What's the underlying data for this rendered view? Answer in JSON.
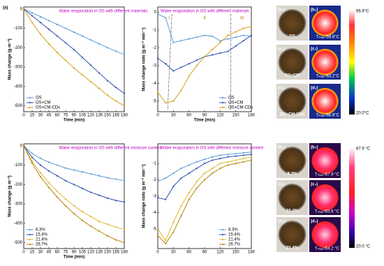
{
  "chart_data": [
    {
      "type": "line",
      "panel_label": "(a)",
      "annotation": "Water evaporation in OS with different materials",
      "x_label": "Time (min)",
      "y_label": "Mass change (g m⁻²)",
      "legend": "bottom-left",
      "x": [
        0,
        15,
        30,
        45,
        60,
        75,
        90,
        105,
        120,
        135,
        150,
        165,
        180
      ],
      "xlim": [
        0,
        180
      ],
      "xticks": [
        0,
        15,
        30,
        45,
        60,
        75,
        90,
        105,
        120,
        135,
        150,
        165,
        180
      ],
      "ylim": [
        -530,
        10
      ],
      "yticks": [
        0,
        -100,
        -200,
        -300,
        -400,
        -500
      ],
      "series": [
        {
          "name": "OS",
          "color": "#5b9bd5",
          "values": [
            0,
            -20,
            -40,
            -60,
            -80,
            -100,
            -120,
            -140,
            -160,
            -180,
            -200,
            -218,
            -235
          ]
        },
        {
          "name": "OS+CM",
          "color": "#2e4fb0",
          "values": [
            0,
            -35,
            -70,
            -105,
            -140,
            -175,
            -210,
            -250,
            -290,
            -330,
            -370,
            -405,
            -435
          ]
        },
        {
          "name": "OS+CM-CDs",
          "color": "#d4a418",
          "values": [
            0,
            -70,
            -130,
            -180,
            -225,
            -265,
            -305,
            -340,
            -375,
            -410,
            -445,
            -475,
            -500
          ]
        }
      ]
    },
    {
      "type": "line",
      "annotation": "Water evaporation in OS with different materials",
      "regions": [
        "I",
        "II",
        "III"
      ],
      "x_label": "Time (min)",
      "y_label": "Mass change ratio (g m⁻² min⁻¹)",
      "legend": "bottom-right",
      "x": [
        0,
        15,
        30,
        45,
        60,
        75,
        90,
        105,
        120,
        135,
        150,
        165,
        180
      ],
      "xlim": [
        0,
        180
      ],
      "xticks": [
        0,
        30,
        60,
        90,
        120,
        150,
        180
      ],
      "ylim": [
        -5.6,
        0.3
      ],
      "yticks": [
        0,
        -1,
        -2,
        -3,
        -4,
        -5
      ],
      "series": [
        {
          "name": "OS",
          "color": "#5b9bd5",
          "values": [
            -0.1,
            -0.3,
            -1.7,
            -1.6,
            -1.5,
            -1.4,
            -1.3,
            -1.35,
            -1.6,
            -1.5,
            -1.4,
            -1.3,
            -1.35
          ]
        },
        {
          "name": "OS+CM",
          "color": "#2e4fb0",
          "values": [
            -2.6,
            -2.9,
            -3.3,
            -3.1,
            -2.9,
            -2.7,
            -2.5,
            -2.4,
            -2.3,
            -2.2,
            -1.9,
            -1.6,
            -1.3
          ]
        },
        {
          "name": "OS+CM-CDs",
          "color": "#d4a418",
          "values": [
            -4.5,
            -5.1,
            -5.0,
            -4.4,
            -3.6,
            -3.0,
            -2.5,
            -2.1,
            -1.7,
            -1.3,
            -1.1,
            -0.9,
            -0.8
          ]
        }
      ]
    },
    {
      "type": "line",
      "annotation": "Water evaporation in OS with different moisture content",
      "x_label": "Time (min)",
      "y_label": "Mass change (g m⁻²)",
      "legend": "bottom-left",
      "x": [
        0,
        15,
        30,
        45,
        60,
        75,
        90,
        105,
        120,
        135,
        150,
        165,
        180
      ],
      "xlim": [
        0,
        180
      ],
      "xticks": [
        0,
        15,
        30,
        45,
        60,
        75,
        90,
        105,
        120,
        135,
        150,
        165,
        180
      ],
      "ylim": [
        -530,
        10
      ],
      "yticks": [
        0,
        -100,
        -200,
        -300,
        -400,
        -500
      ],
      "series": [
        {
          "name": "8.3%",
          "color": "#5b9bd5",
          "values": [
            0,
            -40,
            -65,
            -85,
            -100,
            -115,
            -125,
            -135,
            -145,
            -155,
            -165,
            -172,
            -180
          ]
        },
        {
          "name": "15.4%",
          "color": "#2e4fb0",
          "values": [
            0,
            -60,
            -100,
            -130,
            -155,
            -180,
            -200,
            -220,
            -240,
            -255,
            -270,
            -282,
            -290
          ]
        },
        {
          "name": "21.4%",
          "color": "#e0b830",
          "values": [
            0,
            -80,
            -140,
            -190,
            -235,
            -275,
            -310,
            -340,
            -365,
            -390,
            -405,
            -420,
            -430
          ]
        },
        {
          "name": "26.7%",
          "color": "#b8860b",
          "values": [
            0,
            -90,
            -160,
            -215,
            -265,
            -310,
            -350,
            -385,
            -415,
            -440,
            -465,
            -485,
            -500
          ]
        }
      ]
    },
    {
      "type": "line",
      "annotation": "Water evaporation in OS with different moisture content",
      "y_label": "Mass change ratio (g m⁻² min⁻¹)",
      "legend": "bottom-right",
      "x": [
        0,
        15,
        30,
        45,
        60,
        75,
        90,
        105,
        120,
        135,
        150,
        165,
        180
      ],
      "xlim": [
        0,
        180
      ],
      "xticks": [
        0,
        30,
        60,
        90,
        120,
        150,
        180
      ],
      "ylim": [
        -6.2,
        0.2
      ],
      "yticks": [
        -1,
        -2,
        -3,
        -4,
        -5
      ],
      "series": [
        {
          "name": "8.3%",
          "color": "#5b9bd5",
          "values": [
            -2.1,
            -1.9,
            -1.6,
            -1.3,
            -1.1,
            -0.9,
            -0.75,
            -0.6,
            -0.5,
            -0.45,
            -0.4,
            -0.35,
            -0.3
          ]
        },
        {
          "name": "15.4%",
          "color": "#2e4fb0",
          "values": [
            -3.1,
            -3.2,
            -2.4,
            -1.9,
            -1.6,
            -1.3,
            -1.0,
            -0.8,
            -0.7,
            -0.6,
            -0.55,
            -0.5,
            -0.45
          ]
        },
        {
          "name": "21.4%",
          "color": "#e0b830",
          "values": [
            -5.0,
            -5.7,
            -4.6,
            -3.6,
            -2.8,
            -2.1,
            -1.6,
            -1.3,
            -1.0,
            -0.9,
            -0.8,
            -0.7,
            -0.6
          ]
        },
        {
          "name": "26.7%",
          "color": "#b8860b",
          "values": [
            -5.4,
            -5.9,
            -5.2,
            -4.2,
            -3.2,
            -2.5,
            -2.0,
            -1.6,
            -1.3,
            -1.1,
            -1.0,
            -0.9,
            -0.8
          ]
        }
      ]
    }
  ],
  "panels": [
    {
      "scale_max": "66.6°C",
      "scale_min": "20.0°C",
      "rows": [
        {
          "photo_label": "(b₁)",
          "photo_text": "OS",
          "thermal_label": "(b₂)",
          "thermal_text": "Tₘₐₓ=59.8°C"
        },
        {
          "photo_label": "(c₁)",
          "photo_text": "OS+CM",
          "thermal_label": "(c₂)",
          "thermal_text": "Tₘₐₓ=63.2°C"
        },
        {
          "photo_label": "(d₁)",
          "photo_text": "OS+CM-CDs",
          "thermal_label": "(d₂)",
          "thermal_text": "Tₘₐₓ=66.6°C"
        }
      ]
    },
    {
      "scale_max": "67.9 °C",
      "scale_min": "20.0 °C",
      "rows": [
        {
          "photo_label": "(b₃)",
          "photo_text": "8.3%",
          "thermal_label": "(b₄)",
          "thermal_text": "Tₘₐₓ=67.9 °C"
        },
        {
          "photo_label": "(c₃)",
          "photo_text": "15.4%",
          "thermal_label": "(c₄)",
          "thermal_text": "Tₘₐₓ=63.6 °C"
        },
        {
          "photo_label": "(d₃)",
          "photo_text": "21.4%",
          "thermal_label": "(d₄)",
          "thermal_text": "Tₘₐₓ=64.2 °C"
        }
      ]
    }
  ]
}
